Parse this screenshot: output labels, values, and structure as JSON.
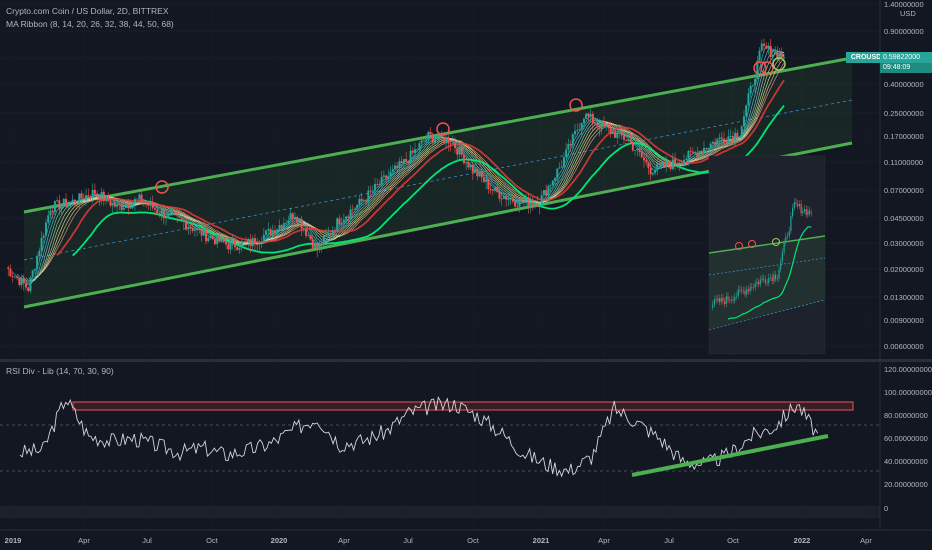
{
  "legend": {
    "title": "Crypto.com Coin / US Dollar, 2D, BITTREX",
    "ma_ribbon": "MA Ribbon (8, 14, 20, 26, 32, 38, 44, 50, 68)",
    "rsi": "RSI Div - Lib (14, 70, 30, 90)"
  },
  "price_axis": {
    "unit": "USD",
    "ticks": [
      "1.40000000",
      "0.90000000",
      "0.60000000",
      "0.40000000",
      "0.25000000",
      "0.17000000",
      "0.11000000",
      "0.07000000",
      "0.04500000",
      "0.03000000",
      "0.02000000",
      "0.01300000",
      "0.00900000",
      "0.00600000"
    ],
    "last_symbol": "CROUSD",
    "last_price": "0.59822000",
    "countdown": "09:48:09"
  },
  "rsi_axis": {
    "ticks": [
      "120.00000000",
      "100.00000000",
      "80.00000000",
      "60.00000000",
      "40.00000000",
      "20.00000000",
      "0"
    ]
  },
  "time_axis": {
    "labels": [
      "2019",
      "Apr",
      "Jul",
      "Oct",
      "2020",
      "Apr",
      "Jul",
      "Oct",
      "2021",
      "Apr",
      "Jul",
      "Oct",
      "2022",
      "Apr"
    ],
    "bold": [
      "2019",
      "2020",
      "2021",
      "2022"
    ]
  },
  "colors": {
    "background": "#131722",
    "channel_green": "#4caf50",
    "ma_slow": "#e53935",
    "ma_fast": "#26c6da",
    "rsi_line": "#d1d4dc",
    "rsi_overbought": "#ef5350",
    "circle_red": "#ef5350",
    "circle_green": "#9ccc65",
    "accent": "#26a69a"
  },
  "chart_data": [
    {
      "type": "line",
      "series": [
        {
          "x": [
            "2019-01",
            "2019-02",
            "2019-03",
            "2019-04",
            "2019-05",
            "2019-06",
            "2019-07",
            "2019-08",
            "2019-09",
            "2019-10",
            "2019-11",
            "2019-12",
            "2020-01",
            "2020-02",
            "2020-03",
            "2020-04",
            "2020-05",
            "2020-06",
            "2020-07",
            "2020-08",
            "2020-09",
            "2020-10",
            "2020-11",
            "2020-12",
            "2021-01",
            "2021-02",
            "2021-03",
            "2021-04",
            "2021-05",
            "2021-06",
            "2021-07",
            "2021-08",
            "2021-09",
            "2021-10",
            "2021-11",
            "2021-12"
          ],
          "y": [
            0.021,
            0.015,
            0.055,
            0.06,
            0.07,
            0.055,
            0.062,
            0.05,
            0.043,
            0.035,
            0.03,
            0.031,
            0.038,
            0.05,
            0.028,
            0.045,
            0.06,
            0.085,
            0.115,
            0.17,
            0.16,
            0.1,
            0.07,
            0.06,
            0.06,
            0.11,
            0.24,
            0.19,
            0.16,
            0.1,
            0.11,
            0.13,
            0.16,
            0.18,
            0.7,
            0.6
          ]
        }
      ],
      "xlabel": "",
      "ylabel": "USD",
      "log_scale": true
    },
    {
      "type": "line",
      "series": [
        {
          "x": [
            "2019-01",
            "2019-02",
            "2019-03",
            "2019-04",
            "2019-05",
            "2019-06",
            "2019-07",
            "2019-08",
            "2019-09",
            "2019-10",
            "2019-11",
            "2019-12",
            "2020-01",
            "2020-02",
            "2020-03",
            "2020-04",
            "2020-05",
            "2020-06",
            "2020-07",
            "2020-08",
            "2020-09",
            "2020-10",
            "2020-11",
            "2020-12",
            "2021-01",
            "2021-02",
            "2021-03",
            "2021-04",
            "2021-05",
            "2021-06",
            "2021-07",
            "2021-08",
            "2021-09",
            "2021-10",
            "2021-11",
            "2021-12"
          ],
          "y": [
            48,
            50,
            95,
            62,
            58,
            60,
            54,
            48,
            52,
            46,
            50,
            56,
            68,
            78,
            55,
            58,
            66,
            82,
            88,
            90,
            80,
            66,
            48,
            38,
            32,
            44,
            86,
            74,
            60,
            40,
            38,
            46,
            62,
            70,
            90,
            60
          ]
        }
      ],
      "ylim": [
        0,
        120
      ],
      "overbought": 70,
      "oversold": 30
    }
  ]
}
